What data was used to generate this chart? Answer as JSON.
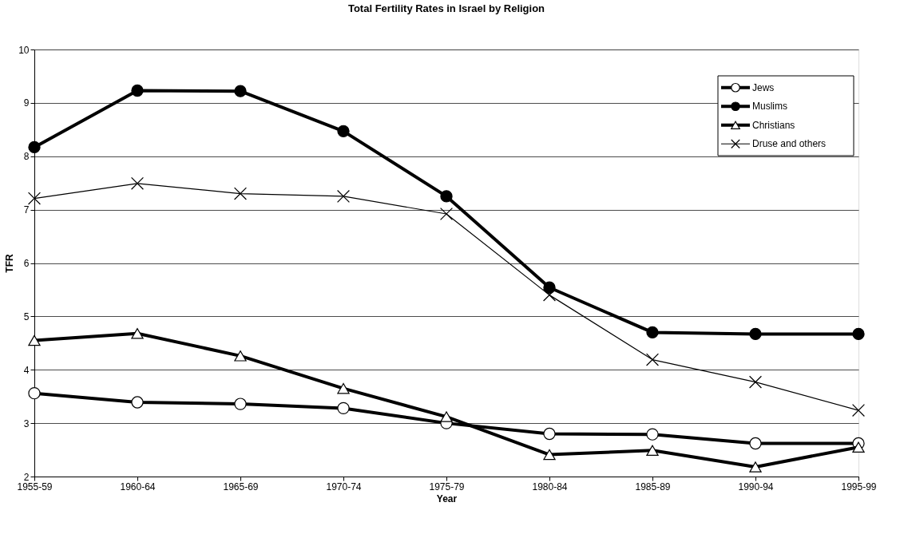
{
  "chart_data": {
    "type": "line",
    "title": "Total Fertility Rates in Israel by Religion",
    "xlabel": "Year",
    "ylabel": "TFR",
    "categories": [
      "1955-59",
      "1960-64",
      "1965-69",
      "1970-74",
      "1975-79",
      "1980-84",
      "1985-89",
      "1990-94",
      "1995-99"
    ],
    "ylim": [
      2,
      10
    ],
    "yticks": [
      2,
      3,
      4,
      5,
      6,
      7,
      8,
      9,
      10
    ],
    "grid": "y",
    "legend": "top right",
    "line_style": "solid",
    "series": [
      {
        "name": "Jews",
        "color": "#000000",
        "marker": "circle",
        "values": [
          3.56,
          3.39,
          3.36,
          3.28,
          3.0,
          2.8,
          2.79,
          2.62,
          2.62
        ]
      },
      {
        "name": "Muslims",
        "color": "#000000",
        "marker": "circle",
        "values": [
          8.17,
          9.23,
          9.22,
          8.47,
          7.25,
          5.54,
          4.7,
          4.67,
          4.67
        ]
      },
      {
        "name": "Christians",
        "color": "#000000",
        "marker": "triangle",
        "values": [
          4.55,
          4.68,
          4.26,
          3.65,
          3.12,
          2.41,
          2.49,
          2.18,
          2.55
        ]
      },
      {
        "name": "Druse and others",
        "color": "#000000",
        "marker": "cross",
        "values": [
          7.21,
          7.49,
          7.3,
          7.25,
          6.92,
          5.4,
          4.19,
          3.77,
          3.24
        ]
      }
    ]
  }
}
